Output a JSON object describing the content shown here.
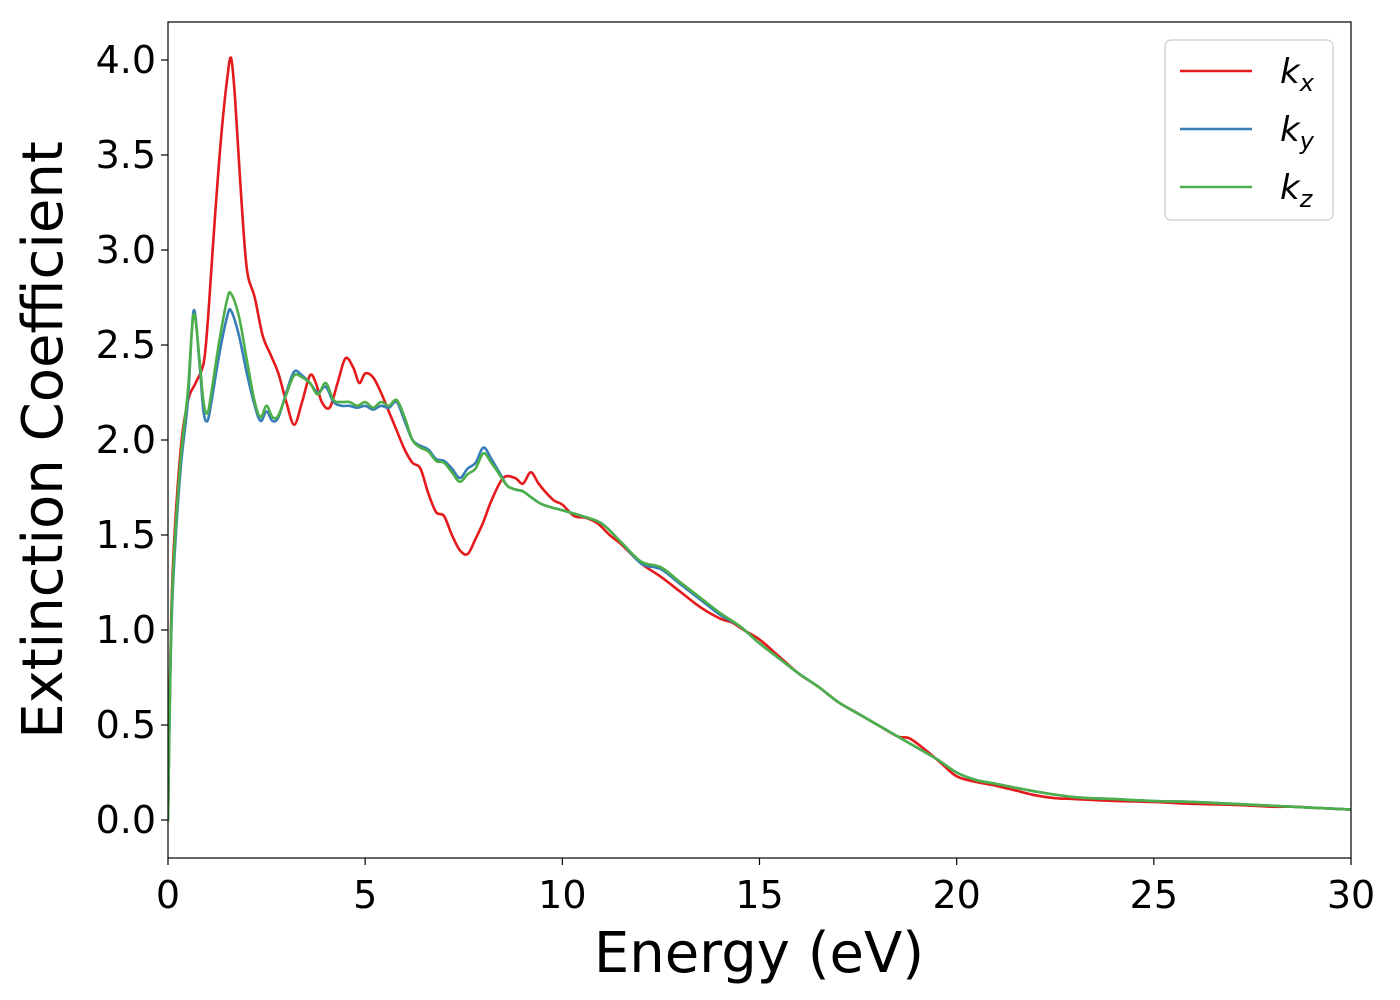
{
  "chart_data": {
    "type": "line",
    "title": "",
    "xlabel": "Energy (eV)",
    "ylabel": "Extinction Coefficient",
    "xlim": [
      0,
      30
    ],
    "ylim": [
      -0.2,
      4.2
    ],
    "xticks": [
      0,
      5,
      10,
      15,
      20,
      25,
      30
    ],
    "xtick_labels": [
      "0",
      "5",
      "10",
      "15",
      "20",
      "25",
      "30"
    ],
    "yticks": [
      0.0,
      0.5,
      1.0,
      1.5,
      2.0,
      2.5,
      3.0,
      3.5,
      4.0
    ],
    "ytick_labels": [
      "0.0",
      "0.5",
      "1.0",
      "1.5",
      "2.0",
      "2.5",
      "3.0",
      "3.5",
      "4.0"
    ],
    "grid": false,
    "legend_position": "top-right",
    "series": [
      {
        "name": "k_x",
        "label_main": "k",
        "label_sub": "x",
        "color": "#e41a1c",
        "x": [
          0,
          0.1,
          0.3,
          0.5,
          0.7,
          0.9,
          1.0,
          1.1,
          1.2,
          1.35,
          1.5,
          1.6,
          1.7,
          1.85,
          2.0,
          2.2,
          2.4,
          2.6,
          2.8,
          3.0,
          3.2,
          3.4,
          3.6,
          3.75,
          3.9,
          4.1,
          4.3,
          4.5,
          4.7,
          4.85,
          5.0,
          5.2,
          5.4,
          5.6,
          5.8,
          6.0,
          6.2,
          6.4,
          6.6,
          6.8,
          7.0,
          7.2,
          7.4,
          7.6,
          7.8,
          8.0,
          8.2,
          8.5,
          8.8,
          9.0,
          9.2,
          9.4,
          9.6,
          9.8,
          10.0,
          10.3,
          10.6,
          10.9,
          11.2,
          11.5,
          12.0,
          12.5,
          13.0,
          13.5,
          14.0,
          14.3,
          14.6,
          15.0,
          15.5,
          16.0,
          16.5,
          17.0,
          17.5,
          18.0,
          18.5,
          18.8,
          19.2,
          19.6,
          20.0,
          20.5,
          21.0,
          21.5,
          22.0,
          22.5,
          23.0,
          24.0,
          25.0,
          26.0,
          27.0,
          28.0,
          28.5,
          29.0,
          30.0
        ],
        "y": [
          0.0,
          1.2,
          1.9,
          2.2,
          2.3,
          2.4,
          2.6,
          2.9,
          3.2,
          3.6,
          3.9,
          4.01,
          3.8,
          3.3,
          2.9,
          2.75,
          2.55,
          2.45,
          2.35,
          2.2,
          2.08,
          2.2,
          2.34,
          2.3,
          2.2,
          2.17,
          2.3,
          2.43,
          2.38,
          2.3,
          2.35,
          2.33,
          2.25,
          2.15,
          2.05,
          1.95,
          1.88,
          1.85,
          1.72,
          1.62,
          1.6,
          1.5,
          1.42,
          1.4,
          1.48,
          1.57,
          1.68,
          1.8,
          1.8,
          1.77,
          1.83,
          1.77,
          1.72,
          1.68,
          1.66,
          1.6,
          1.59,
          1.56,
          1.5,
          1.45,
          1.35,
          1.28,
          1.2,
          1.12,
          1.06,
          1.04,
          1.0,
          0.95,
          0.86,
          0.77,
          0.7,
          0.62,
          0.56,
          0.5,
          0.44,
          0.43,
          0.37,
          0.3,
          0.23,
          0.2,
          0.18,
          0.155,
          0.13,
          0.115,
          0.11,
          0.1,
          0.095,
          0.085,
          0.08,
          0.07,
          0.07,
          0.065,
          0.055
        ]
      },
      {
        "name": "k_y",
        "label_main": "k",
        "label_sub": "y",
        "color": "#377eb8",
        "x": [
          0,
          0.1,
          0.3,
          0.5,
          0.65,
          0.8,
          0.9,
          1.0,
          1.1,
          1.3,
          1.5,
          1.6,
          1.8,
          2.0,
          2.2,
          2.35,
          2.5,
          2.65,
          2.8,
          3.0,
          3.2,
          3.4,
          3.6,
          3.8,
          4.0,
          4.2,
          4.4,
          4.6,
          4.8,
          5.0,
          5.2,
          5.4,
          5.6,
          5.8,
          6.0,
          6.2,
          6.4,
          6.6,
          6.8,
          7.0,
          7.2,
          7.4,
          7.6,
          7.8,
          8.0,
          8.2,
          8.4,
          8.6,
          8.8,
          9.0,
          9.2,
          9.5,
          10.0,
          10.5,
          11.0,
          11.5,
          12.0,
          12.5,
          13.0,
          13.5,
          14.0,
          14.5,
          15.0,
          15.5,
          16.0,
          16.5,
          17.0,
          17.5,
          18.0,
          18.5,
          19.0,
          19.5,
          20.0,
          20.5,
          21.0,
          22.0,
          23.0,
          24.0,
          25.0,
          26.0,
          27.0,
          28.0,
          29.0,
          30.0
        ],
        "y": [
          0.0,
          1.1,
          1.8,
          2.2,
          2.68,
          2.4,
          2.15,
          2.1,
          2.2,
          2.45,
          2.65,
          2.68,
          2.55,
          2.35,
          2.18,
          2.1,
          2.15,
          2.1,
          2.12,
          2.25,
          2.36,
          2.34,
          2.3,
          2.25,
          2.28,
          2.2,
          2.18,
          2.18,
          2.17,
          2.18,
          2.16,
          2.18,
          2.17,
          2.2,
          2.1,
          2.0,
          1.97,
          1.95,
          1.9,
          1.89,
          1.85,
          1.8,
          1.85,
          1.88,
          1.96,
          1.9,
          1.83,
          1.76,
          1.74,
          1.73,
          1.7,
          1.66,
          1.63,
          1.6,
          1.56,
          1.46,
          1.35,
          1.32,
          1.24,
          1.16,
          1.08,
          1.02,
          0.93,
          0.85,
          0.77,
          0.7,
          0.62,
          0.56,
          0.5,
          0.44,
          0.38,
          0.32,
          0.25,
          0.21,
          0.19,
          0.15,
          0.12,
          0.11,
          0.1,
          0.095,
          0.085,
          0.075,
          0.065,
          0.055
        ]
      },
      {
        "name": "k_z",
        "label_main": "k",
        "label_sub": "z",
        "color": "#4daf4a",
        "x": [
          0,
          0.1,
          0.3,
          0.5,
          0.65,
          0.8,
          0.9,
          1.0,
          1.1,
          1.3,
          1.5,
          1.6,
          1.8,
          2.0,
          2.2,
          2.35,
          2.5,
          2.65,
          2.8,
          3.0,
          3.2,
          3.4,
          3.6,
          3.8,
          4.0,
          4.2,
          4.4,
          4.6,
          4.8,
          5.0,
          5.2,
          5.4,
          5.6,
          5.8,
          6.0,
          6.2,
          6.4,
          6.6,
          6.8,
          7.0,
          7.2,
          7.4,
          7.6,
          7.8,
          8.0,
          8.2,
          8.4,
          8.6,
          8.8,
          9.0,
          9.2,
          9.5,
          10.0,
          10.5,
          11.0,
          11.5,
          12.0,
          12.5,
          13.0,
          13.5,
          14.0,
          14.5,
          15.0,
          15.5,
          16.0,
          16.5,
          17.0,
          17.5,
          18.0,
          18.5,
          19.0,
          19.5,
          20.0,
          20.5,
          21.0,
          22.0,
          23.0,
          24.0,
          25.0,
          26.0,
          27.0,
          28.0,
          29.0,
          30.0
        ],
        "y": [
          0.0,
          1.15,
          1.85,
          2.25,
          2.66,
          2.42,
          2.2,
          2.14,
          2.25,
          2.52,
          2.74,
          2.77,
          2.65,
          2.42,
          2.2,
          2.12,
          2.18,
          2.12,
          2.13,
          2.24,
          2.34,
          2.33,
          2.3,
          2.24,
          2.3,
          2.21,
          2.2,
          2.2,
          2.18,
          2.2,
          2.17,
          2.2,
          2.18,
          2.21,
          2.12,
          2.0,
          1.96,
          1.94,
          1.89,
          1.88,
          1.83,
          1.78,
          1.82,
          1.85,
          1.93,
          1.88,
          1.82,
          1.76,
          1.74,
          1.73,
          1.7,
          1.66,
          1.63,
          1.6,
          1.56,
          1.46,
          1.36,
          1.33,
          1.25,
          1.17,
          1.09,
          1.02,
          0.93,
          0.85,
          0.77,
          0.7,
          0.62,
          0.56,
          0.5,
          0.44,
          0.38,
          0.32,
          0.25,
          0.21,
          0.19,
          0.15,
          0.12,
          0.11,
          0.1,
          0.095,
          0.085,
          0.075,
          0.065,
          0.055
        ]
      }
    ]
  }
}
